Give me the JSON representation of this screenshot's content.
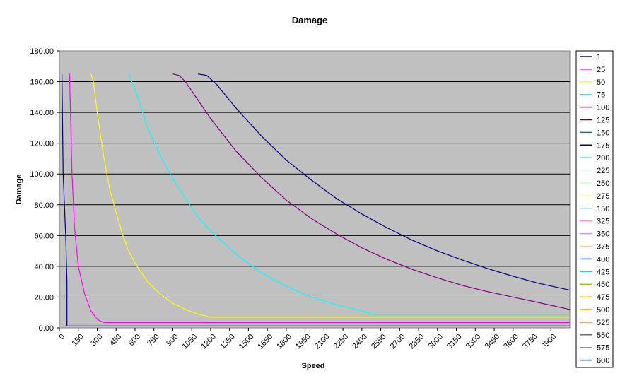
{
  "chart_data": {
    "type": "line",
    "title": "Damage",
    "xlabel": "Speed",
    "ylabel": "Damage",
    "xlim": [
      0,
      4050
    ],
    "ylim": [
      0,
      180
    ],
    "grid": true,
    "legend_position": "right",
    "background": "#c0c0c0",
    "y_tick_labels": [
      "0.00",
      "20.00",
      "40.00",
      "60.00",
      "80.00",
      "100.00",
      "120.00",
      "140.00",
      "160.00",
      "180.00"
    ],
    "x_tick_labels": [
      "0",
      "150",
      "300",
      "450",
      "600",
      "750",
      "900",
      "1050",
      "1200",
      "1350",
      "1500",
      "1650",
      "1800",
      "1950",
      "2100",
      "2250",
      "2400",
      "2550",
      "2700",
      "2850",
      "3000",
      "3150",
      "3300",
      "3450",
      "3600",
      "3750",
      "3900"
    ],
    "series": [
      {
        "name": "1",
        "color": "#000080",
        "x": [
          20,
          30,
          50,
          60,
          60,
          4050
        ],
        "y": [
          165,
          100,
          60,
          30,
          1.2,
          1.2
        ]
      },
      {
        "name": "25",
        "color": "#ff00ff",
        "x": [
          75,
          80,
          100,
          120,
          150,
          200,
          250,
          300,
          350,
          4050
        ],
        "y": [
          165,
          165,
          100,
          65,
          40,
          22,
          11,
          5.5,
          3.5,
          3.5
        ]
      },
      {
        "name": "50",
        "color": "#ffff00",
        "x": [
          250,
          270,
          300,
          350,
          400,
          450,
          500,
          550,
          600,
          700,
          800,
          900,
          1000,
          1100,
          1200,
          4050
        ],
        "y": [
          165,
          160,
          140,
          112,
          90,
          75,
          61,
          50,
          42,
          30,
          22,
          16,
          12,
          9,
          7,
          7
        ]
      },
      {
        "name": "75",
        "color": "#00ffff",
        "x": [
          550,
          600,
          700,
          800,
          900,
          1000,
          1100,
          1200,
          1400,
          1600,
          1800,
          2000,
          2200,
          2400,
          2500,
          4050
        ],
        "y": [
          165,
          155,
          130,
          112,
          97,
          84,
          72,
          63,
          48,
          36,
          27,
          20,
          15,
          11,
          8.5,
          8.5
        ]
      },
      {
        "name": "100",
        "color": "#800080",
        "x": [
          900,
          950,
          1000,
          1200,
          1400,
          1600,
          1800,
          2000,
          2200,
          2400,
          2600,
          2800,
          3000,
          3200,
          3400,
          3600,
          3800,
          4050
        ],
        "y": [
          165,
          164,
          160,
          136,
          115,
          98,
          83,
          71,
          61,
          52,
          44.5,
          38,
          32.5,
          27.5,
          23.5,
          20,
          16.5,
          12
        ]
      },
      {
        "name": "125",
        "color": "#800000",
        "x": [],
        "y": []
      },
      {
        "name": "150",
        "color": "#008080",
        "x": [],
        "y": []
      },
      {
        "name": "175",
        "color": "#000080",
        "x": [
          1100,
          1170,
          1250,
          1400,
          1600,
          1800,
          2000,
          2200,
          2400,
          2600,
          2800,
          3000,
          3200,
          3400,
          3600,
          3800,
          4050
        ],
        "y": [
          165,
          164,
          158,
          143,
          125,
          109,
          96,
          84,
          74,
          65,
          57,
          50,
          44,
          38.5,
          33.5,
          29,
          24.5
        ]
      },
      {
        "name": "200",
        "color": "#00ccff",
        "x": [],
        "y": []
      },
      {
        "name": "225",
        "color": "#ccffff",
        "x": [],
        "y": []
      },
      {
        "name": "250",
        "color": "#ccffcc",
        "x": [],
        "y": []
      },
      {
        "name": "275",
        "color": "#ffff99",
        "x": [],
        "y": []
      },
      {
        "name": "150",
        "color": "#99ccff",
        "x": [],
        "y": []
      },
      {
        "name": "325",
        "color": "#ff99cc",
        "x": [],
        "y": []
      },
      {
        "name": "350",
        "color": "#cc99ff",
        "x": [],
        "y": []
      },
      {
        "name": "375",
        "color": "#ffcc99",
        "x": [],
        "y": []
      },
      {
        "name": "400",
        "color": "#3366ff",
        "x": [],
        "y": []
      },
      {
        "name": "425",
        "color": "#33cccc",
        "x": [],
        "y": []
      },
      {
        "name": "450",
        "color": "#99cc00",
        "x": [],
        "y": []
      },
      {
        "name": "475",
        "color": "#ffcc00",
        "x": [],
        "y": []
      },
      {
        "name": "500",
        "color": "#ff9900",
        "x": [],
        "y": []
      },
      {
        "name": "525",
        "color": "#ff6600",
        "x": [],
        "y": []
      },
      {
        "name": "550",
        "color": "#666699",
        "x": [],
        "y": []
      },
      {
        "name": "575",
        "color": "#969696",
        "x": [],
        "y": []
      },
      {
        "name": "600",
        "color": "#003366",
        "x": [],
        "y": []
      }
    ]
  }
}
